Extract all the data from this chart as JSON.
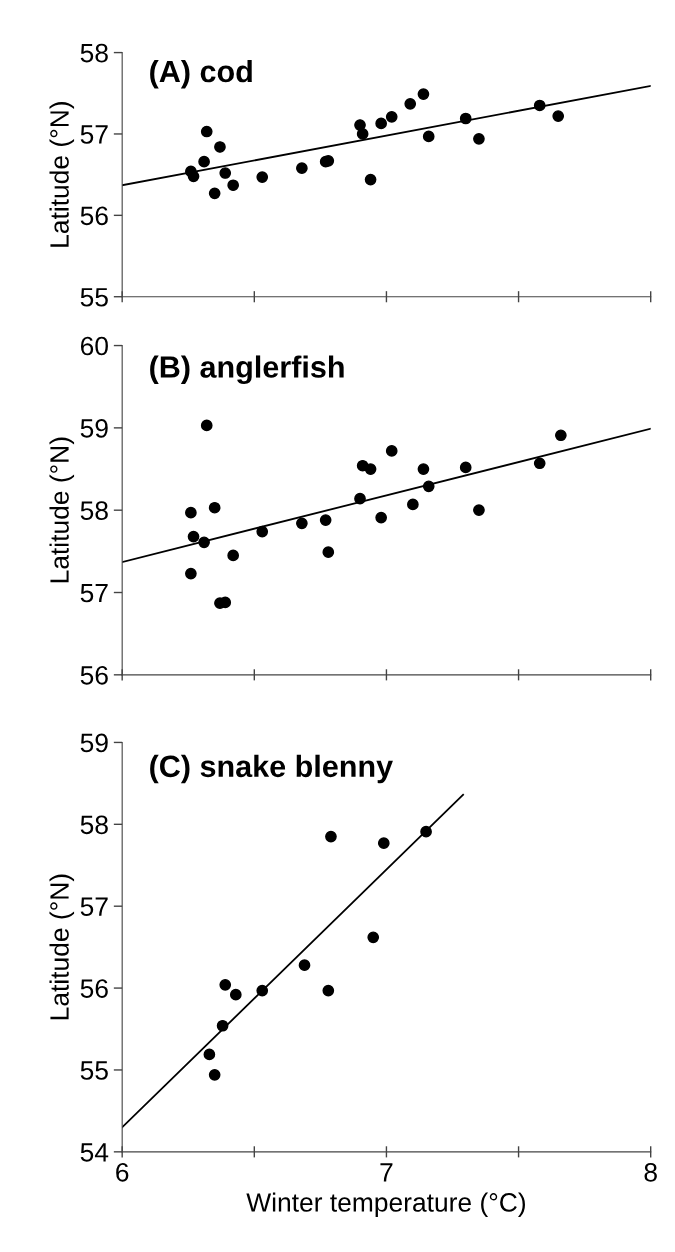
{
  "chart_data": [
    {
      "type": "scatter",
      "title": "(A) cod",
      "ylabel": "Latitude (°N)",
      "xlim": [
        6,
        8
      ],
      "ylim": [
        55,
        58
      ],
      "xticks": [
        6,
        6.5,
        7,
        7.5,
        8
      ],
      "yticks": [
        55,
        56,
        57,
        58
      ],
      "tick_labels": "y",
      "series": [
        {
          "color": "#000000",
          "marker": "circle",
          "x": [
            6.32,
            6.37,
            6.31,
            6.26,
            6.27,
            6.35,
            6.39,
            6.42,
            6.53,
            6.68,
            6.77,
            6.78,
            6.9,
            6.91,
            6.94,
            6.98,
            7.02,
            7.09,
            7.14,
            7.16,
            7.3,
            7.35,
            7.58,
            7.65
          ],
          "values": [
            57.03,
            56.84,
            56.66,
            56.54,
            56.48,
            56.27,
            56.52,
            56.37,
            56.47,
            56.58,
            56.66,
            56.67,
            57.11,
            57.0,
            56.44,
            57.13,
            57.21,
            57.37,
            57.49,
            56.97,
            57.19,
            56.94,
            57.35,
            57.22
          ]
        },
        {
          "type": "line",
          "color": "#000000",
          "marker": "none",
          "line_style": "solid",
          "x": [
            6,
            8
          ],
          "values": [
            56.37,
            57.59
          ]
        }
      ]
    },
    {
      "type": "scatter",
      "title": "(B) anglerfish",
      "ylabel": "Latitude (°N)",
      "xlim": [
        6,
        8
      ],
      "ylim": [
        56,
        60
      ],
      "xticks": [
        6,
        6.5,
        7,
        7.5,
        8
      ],
      "yticks": [
        56,
        57,
        58,
        59,
        60
      ],
      "tick_labels": "y",
      "series": [
        {
          "color": "#000000",
          "marker": "circle",
          "x": [
            6.32,
            6.26,
            6.35,
            6.27,
            6.31,
            6.26,
            6.42,
            6.37,
            6.39,
            6.53,
            6.68,
            6.77,
            6.78,
            6.9,
            6.91,
            6.94,
            6.98,
            7.02,
            7.1,
            7.14,
            7.16,
            7.3,
            7.35,
            7.58,
            7.66
          ],
          "values": [
            59.03,
            57.97,
            58.03,
            57.68,
            57.61,
            57.23,
            57.45,
            56.87,
            56.88,
            57.74,
            57.84,
            57.88,
            57.49,
            58.14,
            58.54,
            58.5,
            57.91,
            58.72,
            58.07,
            58.5,
            58.29,
            58.52,
            58.0,
            58.57,
            58.91
          ]
        },
        {
          "type": "line",
          "color": "#000000",
          "marker": "none",
          "line_style": "solid",
          "x": [
            6,
            8
          ],
          "values": [
            57.37,
            58.99
          ]
        }
      ]
    },
    {
      "type": "scatter",
      "title": "(C) snake blenny",
      "ylabel": "Latitude (°N)",
      "xlabel": "Winter temperature (°C)",
      "xlim": [
        6,
        8
      ],
      "ylim": [
        54,
        59
      ],
      "xticks": [
        6,
        {
          "value": 6.5,
          "label": null
        },
        7,
        {
          "value": 7.5,
          "label": null
        },
        8
      ],
      "yticks": [
        54,
        55,
        56,
        57,
        58,
        59
      ],
      "series": [
        {
          "color": "#000000",
          "marker": "circle",
          "x": [
            6.33,
            6.35,
            6.38,
            6.39,
            6.43,
            6.53,
            6.69,
            6.78,
            6.79,
            6.95,
            6.99,
            7.15
          ],
          "values": [
            55.19,
            54.94,
            55.54,
            56.04,
            55.92,
            55.97,
            56.28,
            55.97,
            57.85,
            56.62,
            57.77,
            57.91
          ]
        },
        {
          "type": "line",
          "color": "#000000",
          "marker": "none",
          "line_style": "solid",
          "x": [
            6,
            7.29
          ],
          "values": [
            54.3,
            58.36
          ]
        }
      ]
    }
  ]
}
